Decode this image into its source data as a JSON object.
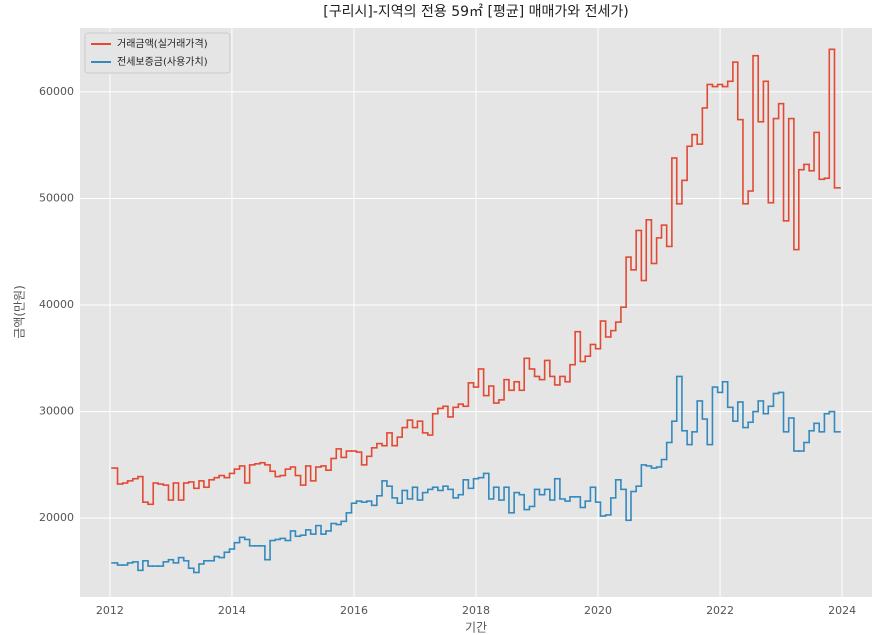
{
  "chart_data": {
    "type": "step",
    "title": "[구리시]-지역의 전용 59㎡ [평균] 매매가와 전세가)",
    "xlabel": "기간",
    "ylabel": "금액(만원)",
    "x": [
      2012.08,
      2012.17,
      2012.25,
      2012.33,
      2012.42,
      2012.5,
      2012.58,
      2012.67,
      2012.75,
      2012.83,
      2012.92,
      2013.0,
      2013.08,
      2013.17,
      2013.25,
      2013.33,
      2013.42,
      2013.5,
      2013.58,
      2013.67,
      2013.75,
      2013.83,
      2013.92,
      2014.0,
      2014.08,
      2014.17,
      2014.25,
      2014.33,
      2014.42,
      2014.5,
      2014.58,
      2014.67,
      2014.75,
      2014.83,
      2014.92,
      2015.0,
      2015.08,
      2015.17,
      2015.25,
      2015.33,
      2015.42,
      2015.5,
      2015.58,
      2015.67,
      2015.75,
      2015.83,
      2015.92,
      2016.0,
      2016.08,
      2016.17,
      2016.25,
      2016.33,
      2016.42,
      2016.5,
      2016.58,
      2016.67,
      2016.75,
      2016.83,
      2016.92,
      2017.0,
      2017.08,
      2017.17,
      2017.25,
      2017.33,
      2017.42,
      2017.5,
      2017.58,
      2017.67,
      2017.75,
      2017.83,
      2017.92,
      2018.0,
      2018.08,
      2018.17,
      2018.25,
      2018.33,
      2018.42,
      2018.5,
      2018.58,
      2018.67,
      2018.75,
      2018.83,
      2018.92,
      2019.0,
      2019.08,
      2019.17,
      2019.25,
      2019.33,
      2019.42,
      2019.5,
      2019.58,
      2019.67,
      2019.75,
      2019.83,
      2019.92,
      2020.0,
      2020.08,
      2020.17,
      2020.25,
      2020.33,
      2020.42,
      2020.5,
      2020.58,
      2020.67,
      2020.75,
      2020.83,
      2020.92,
      2021.0,
      2021.08,
      2021.17,
      2021.25,
      2021.33,
      2021.42,
      2021.5,
      2021.58,
      2021.67,
      2021.75,
      2021.83,
      2021.92,
      2022.0,
      2022.08,
      2022.17,
      2022.25,
      2022.33,
      2022.42,
      2022.5,
      2022.58,
      2022.67,
      2022.75,
      2022.83,
      2022.92,
      2023.0,
      2023.08,
      2023.17,
      2023.25,
      2023.33,
      2023.42,
      2023.5,
      2023.58,
      2023.67,
      2023.75,
      2023.83,
      2023.92
    ],
    "series": [
      {
        "name": "거래금액(실거래가격)",
        "color": "#e24a33",
        "values": [
          24700,
          23200,
          23300,
          23500,
          23700,
          23900,
          21500,
          21300,
          23300,
          23200,
          23100,
          21700,
          23300,
          21700,
          23300,
          23400,
          22800,
          23500,
          22900,
          23600,
          23800,
          24000,
          23800,
          24200,
          24600,
          24900,
          23300,
          25000,
          25100,
          25200,
          25000,
          24400,
          23900,
          24000,
          24600,
          24800,
          24000,
          23100,
          24900,
          23500,
          24800,
          24900,
          24500,
          25600,
          26500,
          25700,
          26300,
          26300,
          26200,
          25000,
          25800,
          26600,
          27000,
          26800,
          28000,
          26800,
          27600,
          28500,
          29200,
          28500,
          29100,
          28000,
          27800,
          29800,
          30300,
          30500,
          29500,
          30400,
          30700,
          30500,
          32700,
          32300,
          34000,
          31500,
          32400,
          30800,
          31100,
          33000,
          32000,
          32800,
          32000,
          35000,
          34000,
          33300,
          33000,
          34800,
          33300,
          32500,
          33300,
          32800,
          34400,
          37500,
          34700,
          35200,
          36300,
          35900,
          38500,
          37000,
          37600,
          38400,
          39800,
          44500,
          43300,
          47000,
          42300,
          48000,
          43900,
          46300,
          47500,
          45500,
          53800,
          49500,
          51700,
          54900,
          56000,
          55100,
          58500,
          60700,
          60500,
          60700,
          60500,
          61000,
          62800,
          57400,
          49500,
          50700,
          63400,
          57200,
          61000,
          49600,
          57500,
          58900,
          47900,
          57500,
          45200,
          52700,
          53200,
          52600,
          56200,
          51800,
          51900,
          64000,
          51000
        ]
      },
      {
        "name": "전세보증금(사용가치)",
        "color": "#348abd",
        "values": [
          15800,
          15600,
          15600,
          15800,
          15900,
          15100,
          16000,
          15500,
          15500,
          15500,
          15900,
          16100,
          15800,
          16300,
          16000,
          15300,
          14900,
          15700,
          16000,
          16000,
          16400,
          16300,
          16800,
          17100,
          17700,
          18200,
          18000,
          17400,
          17400,
          17400,
          16100,
          17900,
          18000,
          18100,
          17900,
          18800,
          18300,
          18400,
          18900,
          18500,
          19300,
          18500,
          18800,
          19500,
          19400,
          19700,
          20500,
          21400,
          21600,
          21500,
          21600,
          21200,
          22100,
          23500,
          23000,
          21900,
          21400,
          22600,
          21800,
          22900,
          21700,
          22400,
          22700,
          22900,
          22600,
          23000,
          22700,
          21900,
          22200,
          23600,
          22800,
          23700,
          23800,
          24200,
          21800,
          22900,
          21700,
          22900,
          20500,
          22400,
          22200,
          20800,
          21100,
          22700,
          22200,
          22700,
          21700,
          23700,
          21800,
          21600,
          22000,
          22000,
          21000,
          21600,
          22900,
          21500,
          20200,
          20300,
          21900,
          23600,
          22700,
          19800,
          22500,
          23000,
          25000,
          24900,
          24700,
          24800,
          25500,
          27100,
          29100,
          33300,
          28200,
          26900,
          28100,
          31000,
          29300,
          26900,
          32300,
          31800,
          32800,
          30400,
          29100,
          30900,
          28500,
          29000,
          30000,
          31000,
          29800,
          30500,
          31700,
          31800,
          28100,
          29400,
          26300,
          26300,
          27100,
          28200,
          28900,
          28100,
          29800,
          30000,
          28100
        ]
      }
    ],
    "xlim": [
      2011.51,
      2024.49
    ],
    "ylim": [
      12600,
      66000
    ],
    "xticks": [
      2012,
      2014,
      2016,
      2018,
      2020,
      2022,
      2024
    ],
    "yticks": [
      20000,
      30000,
      40000,
      50000,
      60000
    ],
    "grid": true,
    "legend": "upper left"
  }
}
